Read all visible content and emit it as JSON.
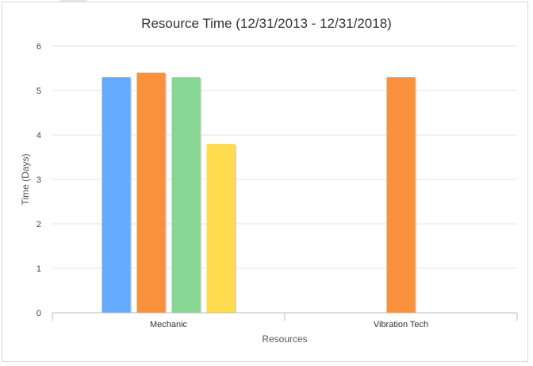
{
  "chart_data": {
    "type": "bar",
    "title": "Resource Time (12/31/2013 - 12/31/2018)",
    "xlabel": "Resources",
    "ylabel": "Time (Days)",
    "ylim": [
      0,
      6
    ],
    "yticks": [
      "0",
      "1",
      "2",
      "3",
      "4",
      "5",
      "6"
    ],
    "grid": true,
    "categories": [
      "Mechanic",
      "Vibration Tech"
    ],
    "series": [
      {
        "color": "#64aaff",
        "values": [
          5.3,
          null
        ]
      },
      {
        "color": "#fa913c",
        "values": [
          5.4,
          5.3
        ]
      },
      {
        "color": "#88d693",
        "values": [
          5.3,
          null
        ]
      },
      {
        "color": "#ffdb4d",
        "values": [
          3.8,
          null
        ]
      }
    ]
  }
}
